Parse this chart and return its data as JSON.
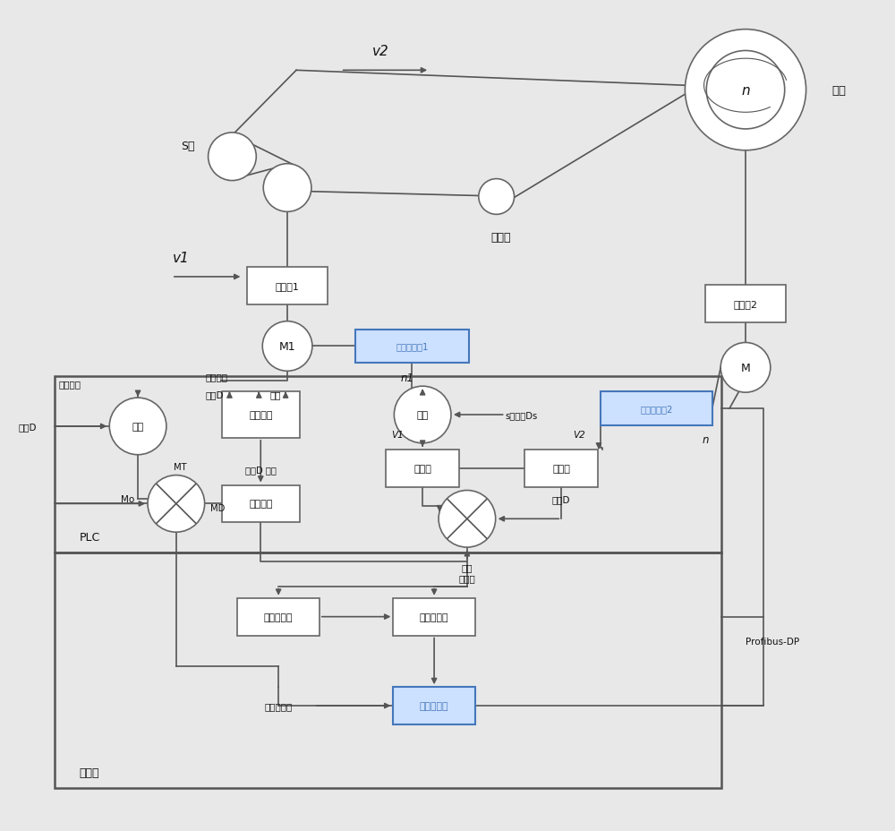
{
  "bg_color": "#e8e8e8",
  "line_color": "#555555",
  "box_fill": "#ffffff",
  "box_edge": "#666666",
  "highlight_fill": "#cce0ff",
  "highlight_edge": "#4477bb",
  "text_color": "#111111",
  "figsize": [
    10.0,
    9.29
  ],
  "dpi": 100,
  "labels": {
    "v2": "v2",
    "v1": "v1",
    "s_roller": "S辊",
    "guide_roller": "导向辊",
    "reel": "卷筒",
    "n_reel": "n",
    "reducer1": "减速器1",
    "reducer2": "减速器2",
    "M1": "M1",
    "M2": "M",
    "encoder1": "脉冲编码器1",
    "encoder2": "脉冲编码器2",
    "n1": "n1",
    "n2": "n",
    "tension_set": "张力设定",
    "actual_speed": "实际速度",
    "coil_d_label": "卷径D",
    "width_label": "宽度",
    "calc1": "运算",
    "calc2": "运算",
    "torque_comp": "力矩补偿",
    "divider1": "除法器",
    "divider2": "除法器",
    "dynamic_inertia": "动态惯量",
    "prop_reg": "比例调节器",
    "speed_reg": "速度调节器",
    "current_reg": "电流调节器",
    "Mo": "Mo",
    "MT": "MT",
    "MD": "MD",
    "V1": "V1",
    "V2": "V2",
    "coil_d_bw": "卷径D 带宽",
    "s_ds": "s辊直径Ds",
    "speed_sp": "转速\n给定值",
    "torque_lim": "力矩极限值",
    "profibus": "Profibus-DP",
    "PLC": "PLC",
    "inverter": "变频器",
    "coil_d_in": "卷径D",
    "coil_d_out": "卷径D"
  }
}
